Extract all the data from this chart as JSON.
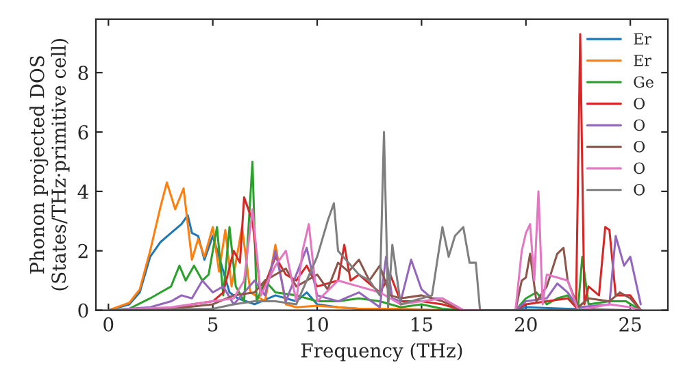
{
  "chart_data": {
    "type": "line",
    "xlabel": "Frequency (THz)",
    "ylabel": "Phonon projected DOS\n(States/THz·primitive cell)",
    "xlim": [
      -0.6,
      26.8
    ],
    "ylim": [
      0,
      9.8
    ],
    "xticks": [
      0,
      5,
      10,
      15,
      20,
      25
    ],
    "yticks": [
      0,
      2,
      4,
      6,
      8
    ],
    "legend": "top right",
    "grid": false,
    "marker": "none",
    "line_style": "solid",
    "series": [
      {
        "name": "Er",
        "color": "#1f77b4",
        "x": [
          0,
          1,
          1.5,
          2,
          2.5,
          3,
          3.5,
          3.8,
          4.0,
          4.3,
          4.6,
          5.0,
          5.3,
          5.8,
          6.2,
          7,
          8,
          9,
          9.5,
          10,
          11,
          12,
          13,
          15,
          19.5,
          20,
          22,
          25
        ],
        "values": [
          0,
          0.2,
          0.6,
          1.8,
          2.3,
          2.6,
          2.9,
          3.2,
          2.6,
          2.5,
          1.7,
          2.5,
          1.8,
          0.6,
          0.4,
          0.2,
          0.5,
          0.3,
          0.6,
          0.2,
          0.1,
          0.05,
          0,
          0,
          0,
          0.1,
          0.05,
          0
        ]
      },
      {
        "name": "Er",
        "color": "#ff7f0e",
        "x": [
          0,
          1,
          1.5,
          2,
          2.5,
          2.8,
          3.2,
          3.6,
          4.0,
          4.3,
          4.6,
          5.0,
          5.3,
          5.6,
          5.9,
          6.4,
          6.8,
          7.5,
          8,
          8.5,
          9,
          10,
          12,
          14,
          16,
          25
        ],
        "values": [
          0,
          0.25,
          0.7,
          2.0,
          3.5,
          4.3,
          3.4,
          4.1,
          1.7,
          2.4,
          1.8,
          2.8,
          1.3,
          2.7,
          0.8,
          2.8,
          0.6,
          0.3,
          2.2,
          0.2,
          0.1,
          0.15,
          0.05,
          0.05,
          0,
          0
        ]
      },
      {
        "name": "Ge",
        "color": "#2ca02c",
        "x": [
          0,
          1,
          2,
          2.5,
          3,
          3.4,
          3.7,
          4.1,
          4.5,
          4.8,
          5.2,
          5.5,
          5.8,
          6.1,
          6.5,
          6.9,
          7.1,
          7.5,
          8,
          9,
          10,
          11,
          12,
          13,
          14,
          15,
          16,
          17,
          19.5,
          20,
          20.5,
          21,
          21.5,
          22,
          22.5,
          22.7,
          23,
          24,
          24.8,
          25.5
        ],
        "values": [
          0,
          0.05,
          0.4,
          0.6,
          0.8,
          1.5,
          1.0,
          1.5,
          1.0,
          1.2,
          2.8,
          0.5,
          2.8,
          0.8,
          0.3,
          5.0,
          0.3,
          1.0,
          0.6,
          0.5,
          0.3,
          0.3,
          0.4,
          0.3,
          0.1,
          0.2,
          0.05,
          0,
          0,
          0.4,
          0.6,
          0.2,
          0.4,
          0.5,
          0.1,
          1.8,
          0.2,
          0.3,
          0.3,
          0
        ]
      },
      {
        "name": "O",
        "color": "#d62728",
        "x": [
          0,
          3,
          4,
          5,
          5.5,
          6.0,
          6.3,
          6.5,
          6.9,
          7.3,
          8,
          8.5,
          9,
          9.5,
          10,
          10.5,
          11,
          11.3,
          11.6,
          12,
          13,
          13.5,
          14,
          15,
          16,
          17,
          19.5,
          20,
          21,
          22,
          22.4,
          22.6,
          22.8,
          23,
          23.5,
          23.8,
          24,
          24.3,
          25,
          25.5
        ],
        "values": [
          0,
          0.05,
          0.2,
          0.3,
          0.6,
          2.0,
          1.6,
          3.8,
          3.0,
          0.5,
          1.8,
          1.2,
          1.0,
          1.5,
          0.8,
          0.9,
          1.0,
          2.2,
          1.0,
          1.2,
          0.6,
          1.2,
          0.3,
          0.3,
          0.2,
          0,
          0,
          0.2,
          0.3,
          0.4,
          0.1,
          9.3,
          0.2,
          0.8,
          0.5,
          2.8,
          2.7,
          0.5,
          0.5,
          0
        ]
      },
      {
        "name": "O",
        "color": "#9467bd",
        "x": [
          0,
          2,
          3,
          3.5,
          4,
          4.5,
          5.0,
          5.5,
          6,
          7,
          7.5,
          8,
          8.5,
          9.5,
          10,
          11,
          12,
          13,
          13.3,
          13.6,
          14,
          14.5,
          15,
          15.5,
          16,
          17,
          19.5,
          20,
          21,
          21.5,
          22,
          22.5,
          24,
          24.3,
          24.7,
          25,
          25.5
        ],
        "values": [
          0,
          0.1,
          0.3,
          0.5,
          0.4,
          1.0,
          0.6,
          0.8,
          0.2,
          1.0,
          0.5,
          2.0,
          0.3,
          2.1,
          0.5,
          0.3,
          0.6,
          0.1,
          1.8,
          0.4,
          0.3,
          1.7,
          0.7,
          0.4,
          0.4,
          0,
          0,
          0.3,
          0.4,
          0.9,
          0.6,
          0.1,
          0.2,
          2.5,
          1.5,
          1.8,
          0.2
        ]
      },
      {
        "name": "O",
        "color": "#8c564b",
        "x": [
          0,
          3,
          5,
          6,
          7,
          7.5,
          8,
          8.5,
          9,
          10,
          10.5,
          11,
          11.5,
          12,
          12.5,
          13,
          13.5,
          14,
          15,
          16,
          17,
          19.5,
          19.8,
          20,
          20.2,
          20.5,
          21,
          21.5,
          21.8,
          22,
          22.5,
          23,
          24,
          24.5,
          25,
          25.5
        ],
        "values": [
          0,
          0.05,
          0.2,
          0.5,
          0.6,
          1.0,
          1.2,
          1.4,
          0.8,
          1.2,
          0.7,
          1.6,
          1.3,
          1.7,
          1.0,
          1.5,
          0.5,
          0.4,
          0.5,
          0.3,
          0,
          0,
          1.0,
          1.1,
          1.9,
          0.3,
          0.8,
          1.9,
          2.1,
          1.0,
          0.1,
          0.4,
          0.3,
          0.6,
          0.4,
          0
        ]
      },
      {
        "name": "O",
        "color": "#e377c2",
        "x": [
          0,
          3,
          5,
          6,
          6.5,
          6.9,
          7.3,
          8,
          8.5,
          9,
          9.3,
          9.6,
          10,
          11,
          12,
          13,
          14,
          15,
          16,
          17,
          19.5,
          19.8,
          20,
          20.2,
          20.4,
          20.6,
          20.8,
          21,
          21.5,
          22,
          22.5,
          24,
          25,
          25.5
        ],
        "values": [
          0,
          0.1,
          0.3,
          0.4,
          1.0,
          3.4,
          0.5,
          1.5,
          2.0,
          0.3,
          2.0,
          2.9,
          0.3,
          1.0,
          0.8,
          0.6,
          0.2,
          0.3,
          0.4,
          0,
          0,
          2.0,
          2.6,
          2.9,
          1.0,
          4.0,
          0.2,
          1.2,
          1.1,
          1.0,
          0,
          0.2,
          0.1,
          0
        ]
      },
      {
        "name": "O",
        "color": "#7f7f7f",
        "x": [
          0,
          5,
          6,
          7,
          8,
          9,
          10,
          10.5,
          10.8,
          11,
          12,
          12.5,
          13,
          13.2,
          13.4,
          13.6,
          14,
          15,
          15.5,
          16,
          16.3,
          16.6,
          17,
          17.3,
          17.6,
          17.8,
          20,
          25
        ],
        "values": [
          0,
          0.05,
          0.2,
          0.3,
          0.3,
          0.2,
          1.8,
          3.0,
          3.6,
          2.0,
          1.2,
          1.0,
          0.5,
          6.0,
          0.1,
          2.2,
          0.2,
          0.4,
          0.5,
          2.8,
          1.8,
          2.5,
          2.8,
          1.6,
          1.6,
          0,
          0,
          0
        ]
      }
    ]
  }
}
